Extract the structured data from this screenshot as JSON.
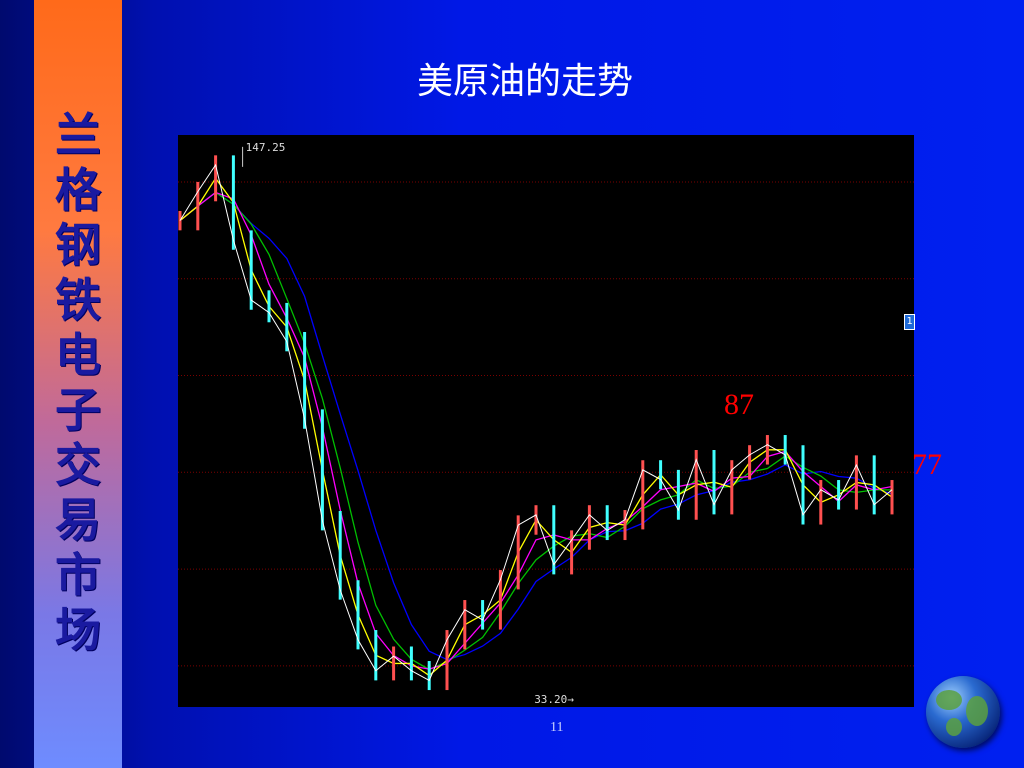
{
  "slide": {
    "title": "美原油的走势",
    "side_text": [
      "兰",
      "格",
      "钢",
      "铁",
      "电",
      "子",
      "交",
      "易",
      "市",
      "场"
    ],
    "page_number": "11"
  },
  "annotations": {
    "peak_label": "87",
    "current_label": "77",
    "marker": "1"
  },
  "colors": {
    "background": "#0018e6",
    "chart_bg": "#000000",
    "grid": "#7a0000",
    "annotation": "#ff0000",
    "stripe_top": "#ff6a1a",
    "stripe_bottom": "#6e8cff"
  },
  "chart_data": {
    "type": "line",
    "title": "",
    "xlabel": "",
    "ylabel": "",
    "ylim": [
      31.5,
      149.7
    ],
    "grid": true,
    "gridlines": [
      40,
      60,
      80,
      100,
      120,
      140
    ],
    "high_label": "147.25",
    "low_label": "33.20",
    "high": 147.25,
    "low": 33.2,
    "series": [
      {
        "values": [
          132,
          138,
          143.5,
          128,
          115.6,
          113,
          107,
          91,
          70,
          55.7,
          45.4,
          39,
          42,
          39,
          37,
          45.4,
          51.6,
          49.5,
          57.8,
          69.1,
          71.2,
          60.9,
          66,
          71.2,
          68,
          70.2,
          80.5,
          78.5,
          72.2,
          82.6,
          73.3,
          80.5,
          83.6,
          85.7,
          83.6,
          71.2,
          76.4,
          74.3,
          81.5,
          73.3,
          76.4
        ]
      }
    ]
  }
}
